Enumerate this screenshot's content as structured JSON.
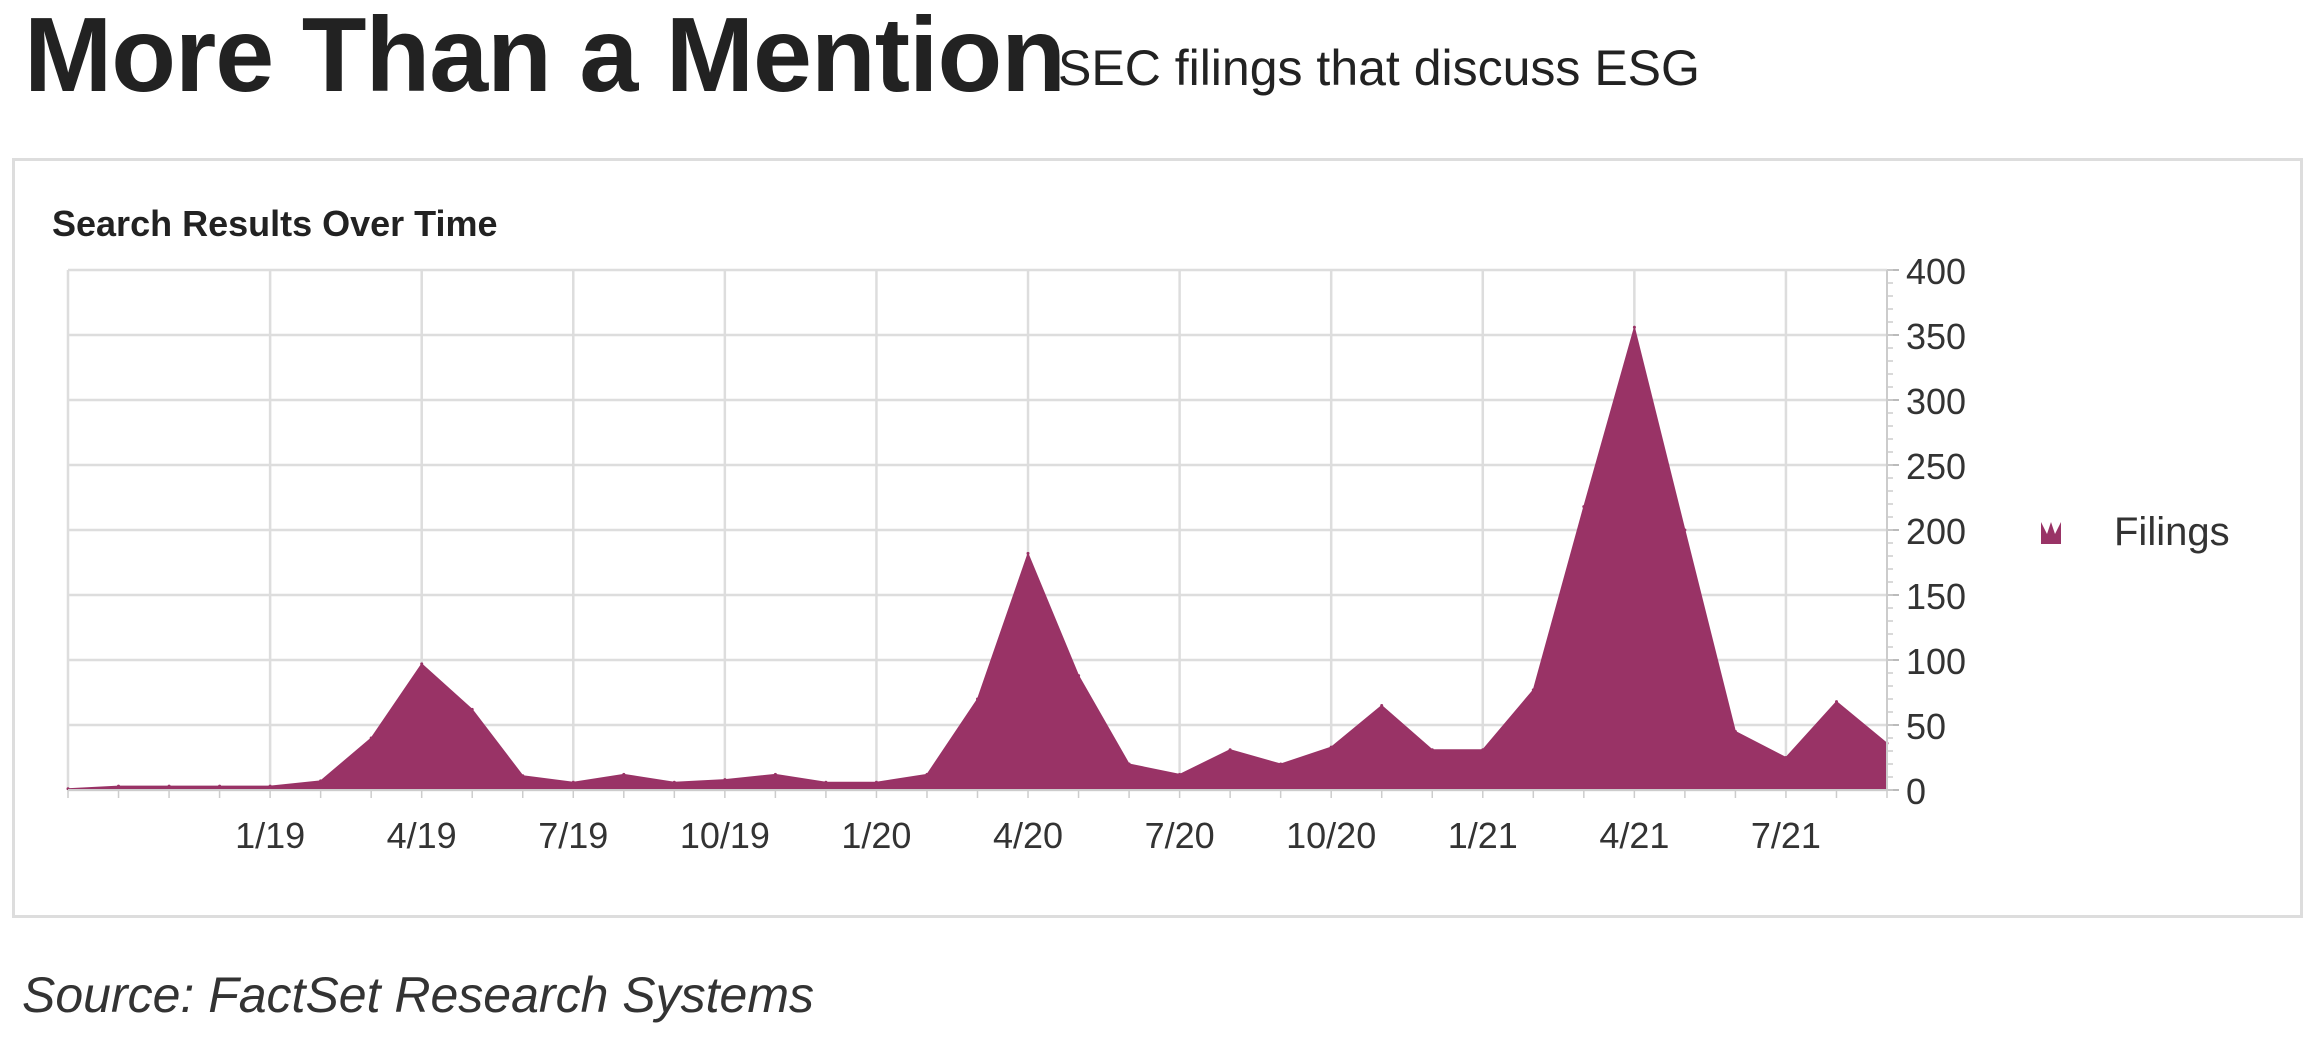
{
  "header": {
    "title": "More Than a Mention",
    "subtitle": "SEC filings that discuss ESG"
  },
  "footer": {
    "source": "Source: FactSet Research Systems"
  },
  "chart_data": {
    "type": "area",
    "title": "Search Results Over Time",
    "xlabel": "",
    "ylabel": "",
    "ylim": [
      0,
      400
    ],
    "yticks": [
      0,
      50,
      100,
      150,
      200,
      250,
      300,
      350,
      400
    ],
    "y_axis_side": "right",
    "grid": true,
    "legend": "right",
    "x_tick_labels": [
      "1/19",
      "4/19",
      "7/19",
      "10/19",
      "1/20",
      "4/20",
      "7/20",
      "10/20",
      "1/21",
      "4/21",
      "7/21"
    ],
    "x": [
      "9/18",
      "10/18",
      "11/18",
      "12/18",
      "1/19",
      "2/19",
      "3/19",
      "4/19",
      "5/19",
      "6/19",
      "7/19",
      "8/19",
      "9/19",
      "10/19",
      "11/19",
      "12/19",
      "1/20",
      "2/20",
      "3/20",
      "4/20",
      "5/20",
      "6/20",
      "7/20",
      "8/20",
      "9/20",
      "10/20",
      "11/20",
      "12/20",
      "1/21",
      "2/21",
      "3/21",
      "4/21",
      "5/21",
      "6/21",
      "7/21",
      "8/21",
      "9/21"
    ],
    "series": [
      {
        "name": "Filings",
        "color": "#993366",
        "values": [
          1,
          3,
          3,
          3,
          3,
          7,
          40,
          97,
          62,
          11,
          6,
          12,
          6,
          8,
          12,
          6,
          6,
          12,
          70,
          182,
          88,
          20,
          12,
          31,
          20,
          33,
          65,
          31,
          31,
          77,
          218,
          356,
          200,
          45,
          25,
          68,
          36
        ]
      }
    ]
  }
}
